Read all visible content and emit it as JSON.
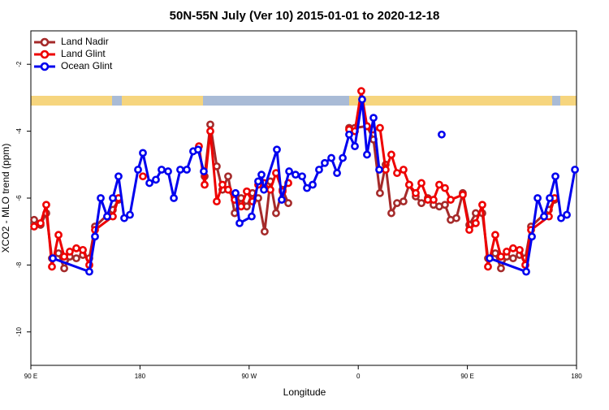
{
  "chart_data": {
    "type": "line",
    "title": "50N-55N July (Ver 10)   2015-01-01 to 2020-12-18",
    "x_label": "Longitude",
    "y_label": "XCO2 - MLO trend (ppm)",
    "xlim": [
      90,
      540
    ],
    "ylim": [
      -11,
      -1
    ],
    "xticks": [
      {
        "value": 90,
        "label": "90 E"
      },
      180,
      {
        "value": 270,
        "label": "90 W"
      },
      {
        "value": 360,
        "label": "0"
      },
      {
        "value": 450,
        "label": "90 E"
      },
      {
        "value": 540,
        "label": "180"
      }
    ],
    "yticks": [
      -2,
      -4,
      -6,
      -8,
      -10
    ],
    "legend": "upper left",
    "series": [
      {
        "name": "Land Nadir",
        "color": "#a52a2a",
        "x": [
          92.7,
          98.0,
          102.7,
          107.4,
          112.8,
          117.5,
          122.1,
          127.5,
          132.9,
          138.2,
          142.9,
          157.6,
          162.3,
          null,
          233.3,
          238.0,
          243.3,
          248.0,
          252.7,
          258.1,
          263.4,
          268.1,
          272.8,
          277.5,
          282.8,
          287.5,
          292.2,
          297.6,
          302.3,
          null,
          352.5,
          357.2,
          367.2,
          372.6,
          377.9,
          382.6,
          387.3,
          392.0,
          397.3,
          402.0,
          407.4,
          412.1,
          417.4,
          422.1,
          426.8,
          431.5,
          436.2,
          440.9,
          446.2,
          451.6,
          456.9,
          462.3,
          467.0,
          473.0,
          477.7,
          482.4,
          487.7,
          493.1,
          497.8,
          502.5,
          517.2,
          521.9
        ],
        "values": [
          -6.65,
          -6.8,
          -6.45,
          -7.8,
          -7.65,
          -8.1,
          -7.75,
          -7.8,
          -7.7,
          -7.8,
          -6.85,
          -6.35,
          -6.05,
          null,
          -5.35,
          -3.8,
          -5.05,
          -5.75,
          -5.35,
          -6.45,
          -6.0,
          -6.25,
          -5.85,
          -6.0,
          -7.0,
          -5.5,
          -6.45,
          -5.75,
          -6.15,
          null,
          -3.9,
          -3.9,
          -3.85,
          -4.25,
          -5.85,
          -5.0,
          -6.45,
          -6.15,
          -6.1,
          -5.6,
          -5.95,
          -6.15,
          -6.0,
          -6.2,
          -6.25,
          -6.2,
          -6.65,
          -6.6,
          -5.85,
          -6.8,
          -6.45,
          -6.45,
          -7.8,
          -7.65,
          -8.1,
          -7.75,
          -7.8,
          -7.7,
          -7.8,
          -6.85,
          -6.35,
          -6.05
        ]
      },
      {
        "name": "Land Glint",
        "color": "#ee0000",
        "x": [
          92.7,
          98.0,
          102.7,
          107.4,
          112.8,
          117.5,
          122.1,
          127.5,
          132.9,
          138.2,
          142.9,
          157.6,
          162.3,
          null,
          182.4,
          null,
          228.6,
          233.3,
          238.0,
          243.3,
          248.0,
          252.7,
          258.1,
          263.4,
          268.1,
          272.8,
          277.5,
          282.2,
          287.5,
          292.2,
          297.6,
          302.3,
          null,
          352.5,
          357.2,
          362.5,
          367.2,
          371.9,
          377.9,
          382.6,
          387.3,
          392.0,
          397.3,
          402.0,
          407.4,
          412.1,
          417.4,
          422.1,
          426.8,
          431.5,
          436.2,
          446.2,
          451.6,
          456.9,
          462.3,
          467.0,
          473.0,
          477.7,
          482.4,
          487.7,
          493.1,
          497.8,
          502.5,
          517.2,
          521.9
        ],
        "values": [
          -6.85,
          -6.75,
          -6.2,
          -8.05,
          -7.1,
          -7.75,
          -7.6,
          -7.5,
          -7.55,
          -8.0,
          -6.95,
          -6.55,
          -6.0,
          null,
          -5.35,
          null,
          -4.45,
          -5.6,
          -4.0,
          -6.1,
          -5.6,
          -5.75,
          -6.05,
          -6.25,
          -5.8,
          -6.1,
          -5.6,
          -5.55,
          -5.75,
          -5.25,
          -5.8,
          -5.55,
          null,
          -3.95,
          -4.0,
          -2.8,
          -3.85,
          -3.95,
          -3.9,
          -5.15,
          -4.7,
          -5.25,
          -5.15,
          -5.6,
          -5.85,
          -5.55,
          -6.05,
          -6.05,
          -5.6,
          -5.7,
          -6.05,
          -5.9,
          -6.95,
          -6.75,
          -6.2,
          -8.05,
          -7.1,
          -7.75,
          -7.6,
          -7.5,
          -7.55,
          -8.0,
          -6.95,
          -6.55,
          -6.0
        ]
      },
      {
        "name": "Ocean Glint",
        "color": "#0000ee",
        "x": [
          108.1,
          138.2,
          142.9,
          147.6,
          152.9,
          157.6,
          162.3,
          167.0,
          171.7,
          178.4,
          182.4,
          187.8,
          193.1,
          197.8,
          203.2,
          207.9,
          213.2,
          218.6,
          223.9,
          227.9,
          232.6,
          null,
          258.8,
          262.1,
          272.1,
          277.5,
          280.2,
          282.2,
          292.9,
          296.9,
          303.0,
          308.3,
          313.7,
          317.7,
          322.4,
          327.7,
          332.4,
          337.8,
          342.5,
          347.2,
          352.5,
          357.2,
          363.2,
          367.2,
          372.6,
          377.3,
          null,
          428.8,
          null,
          468.4,
          498.5,
          503.2,
          507.9,
          513.2,
          517.9,
          522.6,
          527.3,
          532.0,
          538.7
        ],
        "values": [
          -7.8,
          -8.2,
          -7.15,
          -6.0,
          -6.55,
          -6.0,
          -5.35,
          -6.6,
          -6.5,
          -5.15,
          -4.65,
          -5.55,
          -5.45,
          -5.15,
          -5.2,
          -6.0,
          -5.15,
          -5.15,
          -4.6,
          -4.55,
          -5.2,
          null,
          -5.85,
          -6.75,
          -6.55,
          -5.5,
          -5.3,
          -5.75,
          -4.55,
          -6.05,
          -5.2,
          -5.3,
          -5.35,
          -5.7,
          -5.6,
          -5.15,
          -4.95,
          -4.8,
          -5.25,
          -4.8,
          -4.1,
          -4.45,
          -3.05,
          -4.7,
          -3.6,
          -5.15,
          null,
          -4.1,
          null,
          -7.8,
          -8.2,
          -7.15,
          -6.0,
          -6.55,
          -6.0,
          -5.35,
          -6.6,
          -6.5,
          -5.15
        ]
      }
    ]
  }
}
